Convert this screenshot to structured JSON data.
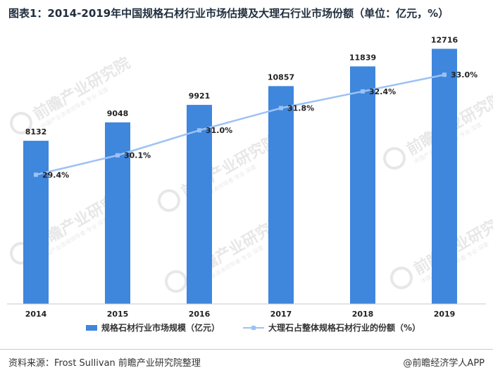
{
  "title": "图表1：2014-2019年中国规格石材行业市场估摸及大理石行业市场份额（单位：亿元，%）",
  "source": "资料来源：Frost Sullivan 前瞻产业研究院整理",
  "brand": "@前瞻经济学人APP",
  "watermark": {
    "text": "前瞻产业研究院",
    "subtext": "中国产业咨询领导者·专业·深度"
  },
  "colors": {
    "bar": "#3f86dd",
    "line": "#9cc2f4",
    "axis": "#c9c9c9",
    "text": "#333333"
  },
  "chart_data": {
    "type": "bar",
    "categories": [
      "2014",
      "2015",
      "2016",
      "2017",
      "2018",
      "2019"
    ],
    "series": [
      {
        "name": "规格石材行业市场规模（亿元）",
        "type": "bar",
        "values": [
          8132,
          9048,
          9921,
          10857,
          11839,
          12716
        ],
        "labels": [
          "8132",
          "9048",
          "9921",
          "10857",
          "11839",
          "12716"
        ]
      },
      {
        "name": "大理石占整体规格石材行业的份额（%）",
        "type": "line",
        "values": [
          29.4,
          30.1,
          31.0,
          31.8,
          32.4,
          33.0
        ],
        "labels": [
          "29.4%",
          "30.1%",
          "31.0%",
          "31.8%",
          "32.4%",
          "33.0%"
        ]
      }
    ],
    "legend_position": "bottom",
    "grid": false
  }
}
